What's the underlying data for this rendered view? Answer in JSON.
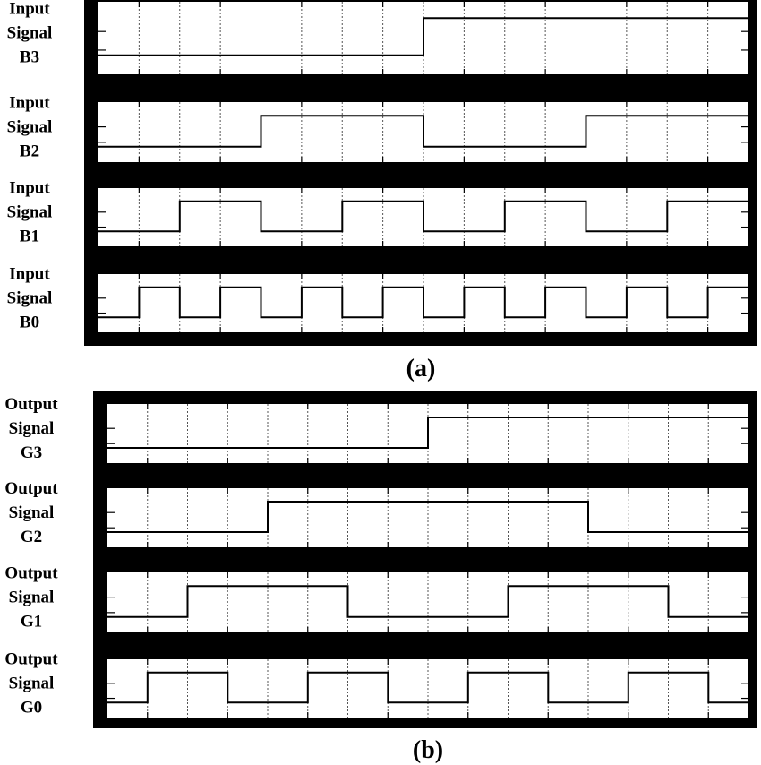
{
  "chart_data": [
    {
      "type": "line",
      "step": true,
      "caption": "(a)",
      "grid": true,
      "time_slots": 16,
      "series": [
        {
          "label_lines": [
            "Input",
            "Signal",
            "B3"
          ],
          "values": [
            0,
            0,
            0,
            0,
            0,
            0,
            0,
            0,
            1,
            1,
            1,
            1,
            1,
            1,
            1,
            1
          ]
        },
        {
          "label_lines": [
            "Input",
            "Signal",
            "B2"
          ],
          "values": [
            0,
            0,
            0,
            0,
            1,
            1,
            1,
            1,
            0,
            0,
            0,
            0,
            1,
            1,
            1,
            1
          ]
        },
        {
          "label_lines": [
            "Input",
            "Signal",
            "B1"
          ],
          "values": [
            0,
            0,
            1,
            1,
            0,
            0,
            1,
            1,
            0,
            0,
            1,
            1,
            0,
            0,
            1,
            1
          ]
        },
        {
          "label_lines": [
            "Input",
            "Signal",
            "B0"
          ],
          "values": [
            0,
            1,
            0,
            1,
            0,
            1,
            0,
            1,
            0,
            1,
            0,
            1,
            0,
            1,
            0,
            1
          ]
        }
      ]
    },
    {
      "type": "line",
      "step": true,
      "caption": "(b)",
      "grid": true,
      "time_slots": 16,
      "series": [
        {
          "label_lines": [
            "Output",
            "Signal",
            "G3"
          ],
          "values": [
            0,
            0,
            0,
            0,
            0,
            0,
            0,
            0,
            1,
            1,
            1,
            1,
            1,
            1,
            1,
            1
          ]
        },
        {
          "label_lines": [
            "Output",
            "Signal",
            "G2"
          ],
          "values": [
            0,
            0,
            0,
            0,
            1,
            1,
            1,
            1,
            1,
            1,
            1,
            1,
            0,
            0,
            0,
            0
          ]
        },
        {
          "label_lines": [
            "Output",
            "Signal",
            "G1"
          ],
          "values": [
            0,
            0,
            1,
            1,
            1,
            1,
            0,
            0,
            0,
            0,
            1,
            1,
            1,
            1,
            0,
            0
          ]
        },
        {
          "label_lines": [
            "Output",
            "Signal",
            "G0"
          ],
          "values": [
            0,
            1,
            1,
            0,
            0,
            1,
            1,
            0,
            0,
            1,
            1,
            0,
            0,
            1,
            1,
            0
          ]
        }
      ]
    }
  ]
}
